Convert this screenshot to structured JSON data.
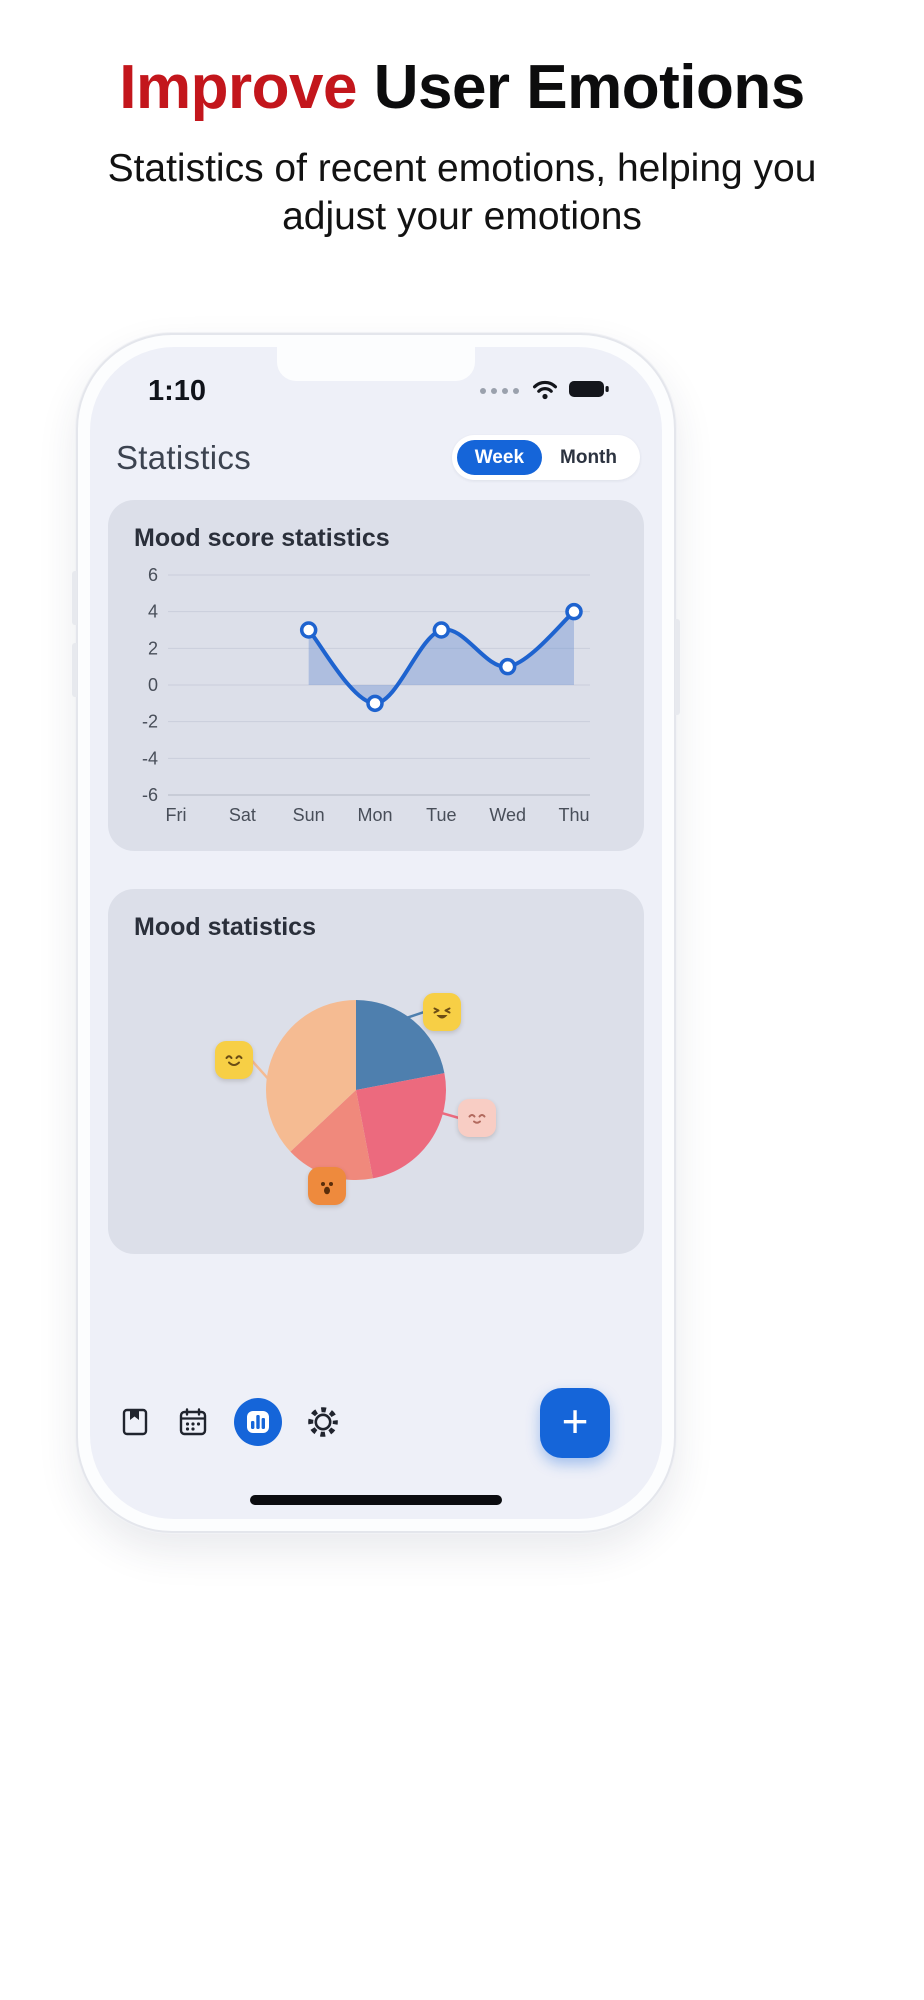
{
  "theme": {
    "accent_red": "#c3161c",
    "primary_blue": "#1565d9",
    "screen_bg": "#eef0f8",
    "card_bg": "#dcdfe9"
  },
  "hero": {
    "title_highlight": "Improve",
    "title_rest": "User Emotions",
    "subtitle": "Statistics of recent emotions, helping you adjust your emotions"
  },
  "phone": {
    "status_bar": {
      "time": "1:10"
    },
    "header": {
      "title": "Statistics",
      "toggle": {
        "options": [
          "Week",
          "Month"
        ],
        "selected": "Week"
      }
    },
    "nav": {
      "items": [
        {
          "name": "journal",
          "active": false
        },
        {
          "name": "calendar",
          "active": false
        },
        {
          "name": "statistics",
          "active": true
        },
        {
          "name": "settings",
          "active": false
        }
      ],
      "fab_label": "+"
    }
  },
  "chart_data": [
    {
      "type": "line",
      "title": "Mood score statistics",
      "x": [
        "Fri",
        "Sat",
        "Sun",
        "Mon",
        "Tue",
        "Wed",
        "Thu"
      ],
      "values": [
        null,
        null,
        3,
        -1,
        3,
        1,
        4
      ],
      "ylim": [
        -6,
        6
      ],
      "yticks": [
        6,
        4,
        2,
        0,
        -2,
        -4,
        -6
      ],
      "grid": true,
      "area_fill": true,
      "line_color": "#1e63cf",
      "fill_color": "rgba(110,145,210,0.42)",
      "marker": "circle"
    },
    {
      "type": "pie",
      "title": "Mood statistics",
      "start_angle": 0,
      "slices": [
        {
          "label": "laughing",
          "value": 22,
          "color": "#4e7fae",
          "emoji_color": "#f7cf45"
        },
        {
          "label": "blushing",
          "value": 25,
          "color": "#ec6a7e",
          "emoji_color": "#f8cdc4"
        },
        {
          "label": "scared",
          "value": 16,
          "color": "#f0897c",
          "emoji_color": "#ee8a3d"
        },
        {
          "label": "smiling",
          "value": 37,
          "color": "#f5bb92",
          "emoji_color": "#f7cf45"
        }
      ]
    }
  ]
}
